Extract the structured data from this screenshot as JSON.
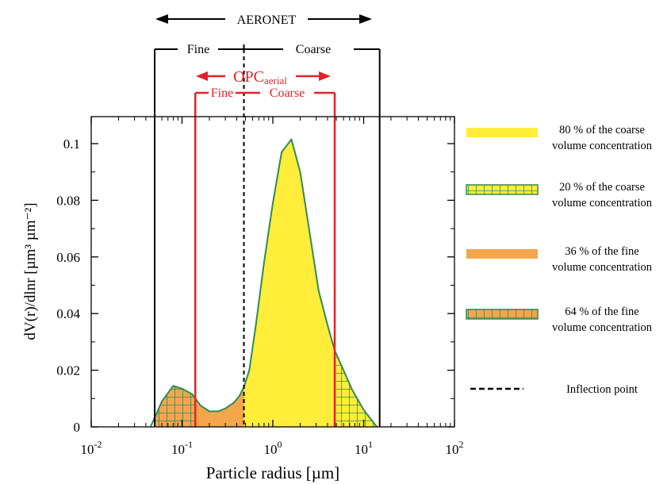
{
  "chart_data": {
    "type": "area",
    "title": "",
    "xlabel": "Particle radius [µm]",
    "ylabel": "dV(r)/dlnr [µm³ µm⁻²]",
    "xscale": "log",
    "xlim": [
      0.01,
      100
    ],
    "ylim": [
      0,
      0.11
    ],
    "x_ticks": [
      {
        "value": 0.01,
        "base": "10",
        "exp": "-2"
      },
      {
        "value": 0.1,
        "base": "10",
        "exp": "-1"
      },
      {
        "value": 1,
        "base": "10",
        "exp": "0"
      },
      {
        "value": 10,
        "base": "10",
        "exp": "1"
      },
      {
        "value": 100,
        "base": "10",
        "exp": "2"
      }
    ],
    "y_ticks": [
      {
        "value": 0,
        "label": "0"
      },
      {
        "value": 0.02,
        "label": "0.02"
      },
      {
        "value": 0.04,
        "label": "0.04"
      },
      {
        "value": 0.06,
        "label": "0.06"
      },
      {
        "value": 0.08,
        "label": "0.08"
      },
      {
        "value": 0.1,
        "label": "0.1"
      }
    ],
    "curve": {
      "color": "#2e8b57",
      "x": [
        0.045,
        0.06,
        0.08,
        0.1,
        0.13,
        0.16,
        0.2,
        0.25,
        0.3,
        0.37,
        0.43,
        0.48,
        0.55,
        0.65,
        0.8,
        1.0,
        1.25,
        1.6,
        2.0,
        2.5,
        3.2,
        4.0,
        4.8,
        6.0,
        7.5,
        10.0,
        14.0
      ],
      "y": [
        0,
        0.009,
        0.0145,
        0.0135,
        0.0115,
        0.0075,
        0.0055,
        0.0055,
        0.0065,
        0.0085,
        0.011,
        0.014,
        0.02,
        0.036,
        0.058,
        0.079,
        0.097,
        0.1015,
        0.09,
        0.07,
        0.048,
        0.036,
        0.027,
        0.02,
        0.013,
        0.006,
        0
      ]
    },
    "bounds": {
      "aeronet_min": 0.05,
      "aeronet_max": 15.0,
      "opc_min": 0.14,
      "opc_max": 4.8,
      "inflection": 0.48
    },
    "regions": [
      {
        "from": "aeronet_min",
        "to": "opc_min",
        "fill": "#f4a64c",
        "pattern": "grid"
      },
      {
        "from": "opc_min",
        "to": "inflection",
        "fill": "#f4a64c",
        "pattern": "none"
      },
      {
        "from": "inflection",
        "to": "opc_max",
        "fill": "#ffed3a",
        "pattern": "none"
      },
      {
        "from": "opc_max",
        "to": "aeronet_max",
        "fill": "#ffed3a",
        "pattern": "grid"
      }
    ],
    "annotations": {
      "aeronet": {
        "label": "AERONET",
        "fine": "Fine",
        "coarse": "Coarse",
        "color": "#000000"
      },
      "opc": {
        "label_main": "OPC",
        "label_sub": "aerial",
        "fine": "Fine",
        "coarse": "Coarse",
        "color": "#e2222a"
      }
    },
    "legend": {
      "placement": "right",
      "items": [
        {
          "swatch": "solid",
          "fill": "#ffed3a",
          "line1": "80 % of the coarse",
          "line2": "volume concentration"
        },
        {
          "swatch": "grid",
          "fill": "#ffed3a",
          "line1": "20 % of the coarse",
          "line2": "volume concentration"
        },
        {
          "swatch": "solid",
          "fill": "#f4a64c",
          "line1": "36 % of the fine",
          "line2": "volume concentration"
        },
        {
          "swatch": "grid",
          "fill": "#f4a64c",
          "line1": "64 % of the fine",
          "line2": "volume concentration"
        },
        {
          "swatch": "dashed",
          "fill": "#000000",
          "line1": "Inflection point",
          "line2": ""
        }
      ]
    },
    "grid": false
  }
}
